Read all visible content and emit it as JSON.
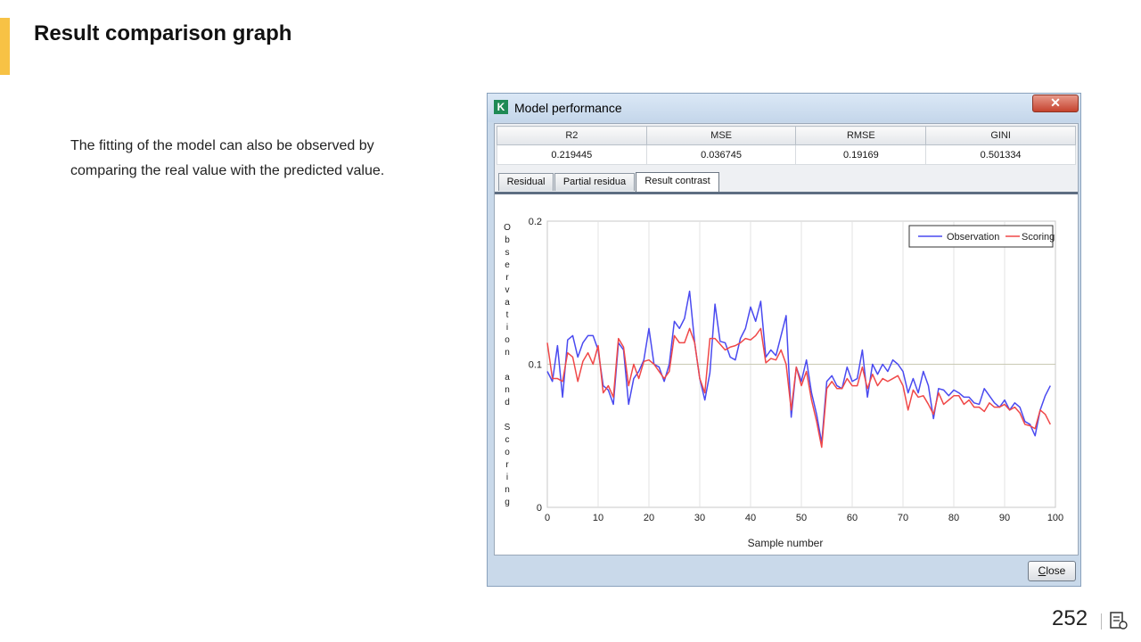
{
  "slide": {
    "title": "Result comparison graph",
    "description": [
      "The fitting of the model can also be observed by",
      "comparing the real value with the predicted value."
    ],
    "page_number": "252",
    "accent_color": "#f7c245"
  },
  "dialog": {
    "title": "Model performance",
    "app_icon_letter": "K",
    "close_glyph": "✕",
    "metrics_headers": [
      "R2",
      "MSE",
      "RMSE",
      "GINI"
    ],
    "metrics_values": [
      "0.219445",
      "0.036745",
      "0.19169",
      "0.501334"
    ],
    "tabs": [
      "Residual",
      "Partial residua",
      "Result contrast"
    ],
    "active_tab": "Result contrast",
    "close_button": {
      "accel": "C",
      "rest": "lose"
    }
  },
  "chart_data": {
    "type": "line",
    "xlabel": "Sample number",
    "ylabel": "Observation and Scoring",
    "xlim": [
      0,
      100
    ],
    "ylim": [
      0,
      0.2
    ],
    "xticks": [
      0,
      10,
      20,
      30,
      40,
      50,
      60,
      70,
      80,
      90,
      100
    ],
    "yticks": [
      {
        "v": 0,
        "label": "0"
      },
      {
        "v": 0.1,
        "label": "0.1"
      },
      {
        "v": 0.2,
        "label": "0.2"
      }
    ],
    "grid": true,
    "legend": "top-right",
    "series": [
      {
        "name": "Observation",
        "color": "#4a4af0",
        "values": [
          0.095,
          0.088,
          0.113,
          0.077,
          0.117,
          0.12,
          0.105,
          0.115,
          0.12,
          0.12,
          0.11,
          0.085,
          0.082,
          0.072,
          0.115,
          0.11,
          0.072,
          0.09,
          0.095,
          0.103,
          0.125,
          0.1,
          0.098,
          0.088,
          0.1,
          0.13,
          0.125,
          0.132,
          0.151,
          0.115,
          0.09,
          0.075,
          0.094,
          0.142,
          0.116,
          0.115,
          0.105,
          0.103,
          0.118,
          0.125,
          0.14,
          0.13,
          0.144,
          0.105,
          0.11,
          0.106,
          0.12,
          0.134,
          0.063,
          0.098,
          0.088,
          0.103,
          0.08,
          0.065,
          0.045,
          0.088,
          0.092,
          0.085,
          0.083,
          0.098,
          0.088,
          0.09,
          0.11,
          0.077,
          0.1,
          0.093,
          0.1,
          0.095,
          0.103,
          0.1,
          0.095,
          0.08,
          0.09,
          0.08,
          0.095,
          0.085,
          0.062,
          0.083,
          0.082,
          0.078,
          0.082,
          0.08,
          0.077,
          0.077,
          0.073,
          0.072,
          0.083,
          0.078,
          0.073,
          0.07,
          0.075,
          0.068,
          0.073,
          0.07,
          0.06,
          0.058,
          0.05,
          0.068,
          0.078,
          0.085
        ]
      },
      {
        "name": "Scoring",
        "color": "#f04848",
        "values": [
          0.115,
          0.09,
          0.09,
          0.088,
          0.108,
          0.105,
          0.088,
          0.102,
          0.108,
          0.1,
          0.113,
          0.08,
          0.085,
          0.077,
          0.118,
          0.112,
          0.085,
          0.1,
          0.09,
          0.102,
          0.103,
          0.1,
          0.095,
          0.09,
          0.095,
          0.12,
          0.115,
          0.115,
          0.125,
          0.115,
          0.09,
          0.08,
          0.118,
          0.118,
          0.114,
          0.11,
          0.112,
          0.113,
          0.115,
          0.118,
          0.117,
          0.12,
          0.125,
          0.101,
          0.104,
          0.103,
          0.11,
          0.1,
          0.068,
          0.098,
          0.085,
          0.095,
          0.075,
          0.06,
          0.042,
          0.083,
          0.088,
          0.083,
          0.083,
          0.09,
          0.085,
          0.085,
          0.098,
          0.083,
          0.093,
          0.085,
          0.09,
          0.088,
          0.09,
          0.092,
          0.085,
          0.068,
          0.082,
          0.077,
          0.078,
          0.072,
          0.065,
          0.08,
          0.072,
          0.075,
          0.078,
          0.078,
          0.072,
          0.075,
          0.07,
          0.07,
          0.067,
          0.073,
          0.07,
          0.07,
          0.072,
          0.068,
          0.07,
          0.066,
          0.058,
          0.057,
          0.055,
          0.068,
          0.065,
          0.058
        ]
      }
    ]
  }
}
